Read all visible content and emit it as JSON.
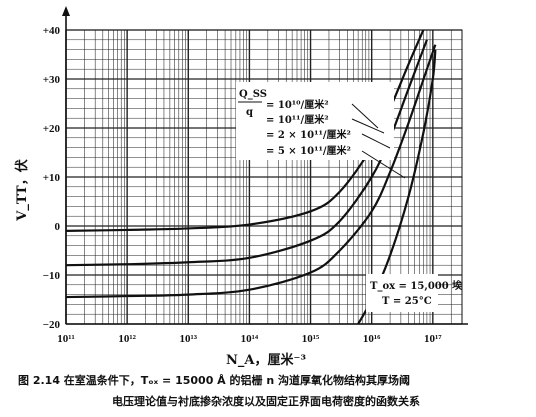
{
  "chart_data": {
    "type": "line",
    "x_scale": "log",
    "xlim": [
      100000000000.0,
      3e+17
    ],
    "ylim": [
      -20,
      40
    ],
    "ylabel": "V_TT，伏",
    "xlabel": "N_A，厘米⁻³",
    "y_ticks": [
      -20,
      -10,
      0,
      10,
      20,
      30,
      40
    ],
    "y_tick_labels": [
      "−20",
      "−10",
      "0",
      "+10",
      "+20",
      "+30",
      "+40"
    ],
    "x_ticks": [
      100000000000.0,
      1000000000000.0,
      10000000000000.0,
      100000000000000.0,
      1000000000000000.0,
      1e+16,
      1e+17
    ],
    "x_tick_labels": [
      "10¹¹",
      "10¹²",
      "10¹³",
      "10¹⁴",
      "10¹⁵",
      "10¹⁶",
      "10¹⁷"
    ],
    "grid": true,
    "series": [
      {
        "name": "= 10¹⁰/厘米²",
        "x": [
          100000000000.0,
          1000000000000.0,
          10000000000000.0,
          100000000000000.0,
          1000000000000000.0,
          3000000000000000.0,
          1e+16,
          2e+16,
          4e+16,
          7e+16
        ],
        "y": [
          -1.0,
          -0.8,
          -0.5,
          0.3,
          3,
          7,
          16,
          24,
          33,
          40
        ]
      },
      {
        "name": "= 10¹¹/厘米²",
        "x": [
          100000000000.0,
          1000000000000.0,
          10000000000000.0,
          100000000000000.0,
          1000000000000000.0,
          3000000000000000.0,
          1e+16,
          2e+16,
          4e+16,
          8e+16
        ],
        "y": [
          -8,
          -7.8,
          -7.4,
          -6.5,
          -3,
          1,
          10,
          18,
          28,
          38
        ]
      },
      {
        "name": "= 2 × 10¹¹/厘米²",
        "x": [
          100000000000.0,
          1000000000000.0,
          10000000000000.0,
          100000000000000.0,
          1000000000000000.0,
          3000000000000000.0,
          1e+16,
          2e+16,
          4e+16,
          8e+16,
          1.1e+17
        ],
        "y": [
          -14.5,
          -14.3,
          -14,
          -13,
          -9.5,
          -5,
          3,
          11,
          21,
          32,
          37
        ]
      },
      {
        "name": "= 5 × 10¹¹/厘米²",
        "x": [
          6000000000000000.0,
          1e+16,
          2e+16,
          4e+16,
          7e+16,
          1e+17,
          1.1e+17
        ],
        "y": [
          -20,
          -15,
          -6,
          6,
          19,
          30,
          36
        ]
      }
    ],
    "annotation": {
      "symbol": "Q_SS",
      "fraction_denominator": "q",
      "conditions": [
        "T_ox = 15,000 埃",
        "T = 25°C"
      ]
    }
  },
  "caption": {
    "line1": "图 2.14   在室温条件下，Tₒₓ = 15000 Å 的铝栅 n 沟道厚氧化物结构其厚场阈",
    "line2": "电压理论值与衬底掺杂浓度以及固定正界面电荷密度的函数关系"
  },
  "colors": {
    "line": "#111111",
    "grid": "#222222",
    "background": "#ffffff"
  }
}
